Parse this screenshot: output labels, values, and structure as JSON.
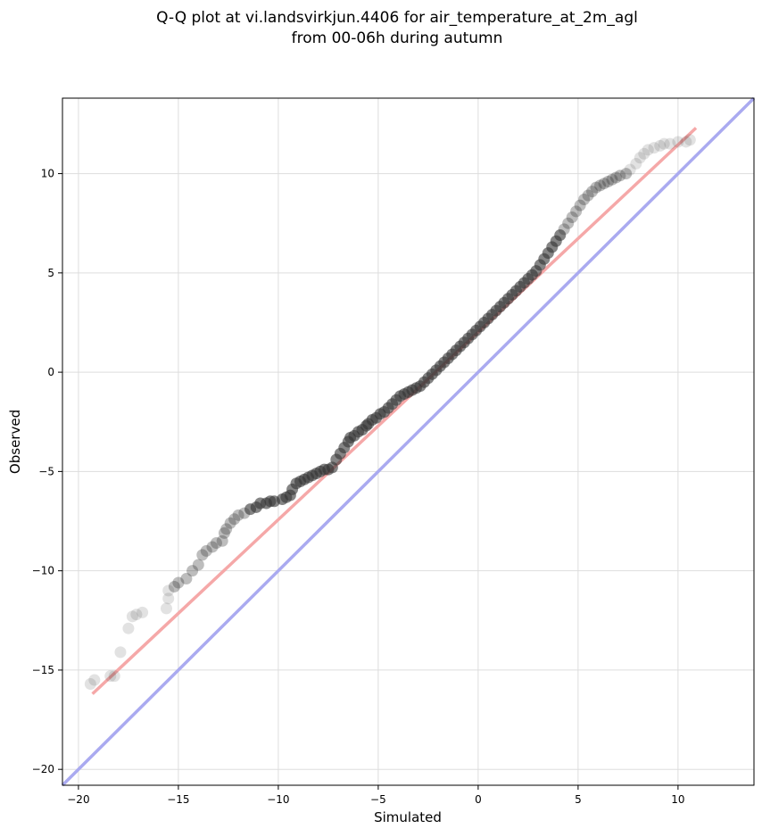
{
  "chart_data": {
    "type": "scatter",
    "title_line1": "Q-Q plot at vi.landsvirkjun.4406 for air_temperature_at_2m_agl",
    "title_line2": "from 00-06h during autumn",
    "xlabel": "Simulated",
    "ylabel": "Observed",
    "xlim": [
      -20.8,
      13.8
    ],
    "ylim": [
      -20.8,
      13.8
    ],
    "xticks": [
      -20,
      -15,
      -10,
      -5,
      0,
      5,
      10
    ],
    "yticks": [
      -20,
      -15,
      -10,
      -5,
      0,
      5,
      10
    ],
    "grid": true,
    "colors": {
      "points": "#333333",
      "identity_line": "#aaaaf0",
      "fit_line": "#f5a8a8"
    },
    "identity_line": {
      "x": [
        -20.8,
        13.8
      ],
      "y": [
        -20.8,
        13.8
      ]
    },
    "fit_line": {
      "x": [
        -19.3,
        10.9
      ],
      "y": [
        -16.2,
        12.3
      ]
    },
    "series": [
      {
        "x": [
          -19.4,
          -19.2,
          -18.4,
          -18.2,
          -17.9,
          -17.5,
          -17.3,
          -17.1,
          -16.8,
          -15.6,
          -15.5,
          -15.5,
          -15.2,
          -15.0,
          -14.6,
          -14.3,
          -14.0,
          -13.8,
          -13.6,
          -13.3,
          -13.1,
          -12.8,
          -12.7,
          -12.6,
          -12.4,
          -12.2,
          -12.0,
          -11.7,
          -11.4,
          -11.1,
          -10.9,
          -10.6,
          -10.4,
          -10.2,
          -9.8,
          -9.6,
          -9.4,
          -9.3,
          -9.1,
          -8.9,
          -8.7,
          -8.5,
          -8.3,
          -8.1,
          -7.9,
          -7.7,
          -7.5,
          -7.3,
          -7.1,
          -6.9,
          -6.7,
          -6.5,
          -6.4,
          -6.2,
          -6.0,
          -5.8,
          -5.6,
          -5.5,
          -5.3,
          -5.1,
          -4.9,
          -4.7,
          -4.5,
          -4.3,
          -4.1,
          -3.9,
          -3.7,
          -3.5,
          -3.3,
          -3.1,
          -2.9,
          -2.7,
          -2.5,
          -2.3,
          -2.1,
          -1.9,
          -1.7,
          -1.5,
          -1.3,
          -1.1,
          -0.9,
          -0.7,
          -0.5,
          -0.3,
          -0.1,
          0.1,
          0.3,
          0.5,
          0.7,
          0.9,
          1.1,
          1.3,
          1.5,
          1.7,
          1.9,
          2.1,
          2.3,
          2.5,
          2.7,
          2.9,
          3.1,
          3.3,
          3.5,
          3.7,
          3.9,
          4.1,
          4.3,
          4.5,
          4.7,
          4.9,
          5.1,
          5.3,
          5.5,
          5.7,
          5.9,
          6.1,
          6.3,
          6.5,
          6.7,
          6.9,
          7.1,
          7.4,
          7.6,
          7.9,
          8.1,
          8.3,
          8.5,
          8.8,
          9.1,
          9.3,
          9.6,
          10.0,
          10.4,
          10.6
        ],
        "y": [
          -15.7,
          -15.5,
          -15.3,
          -15.3,
          -14.1,
          -12.9,
          -12.3,
          -12.2,
          -12.1,
          -11.9,
          -11.4,
          -11.0,
          -10.8,
          -10.6,
          -10.4,
          -10.0,
          -9.7,
          -9.2,
          -9.0,
          -8.8,
          -8.6,
          -8.5,
          -8.1,
          -7.9,
          -7.6,
          -7.4,
          -7.2,
          -7.1,
          -6.9,
          -6.8,
          -6.6,
          -6.6,
          -6.5,
          -6.5,
          -6.4,
          -6.3,
          -6.2,
          -5.9,
          -5.6,
          -5.5,
          -5.4,
          -5.3,
          -5.2,
          -5.1,
          -5.0,
          -4.9,
          -4.9,
          -4.8,
          -4.4,
          -4.1,
          -3.8,
          -3.5,
          -3.3,
          -3.2,
          -3.0,
          -2.9,
          -2.7,
          -2.6,
          -2.4,
          -2.3,
          -2.1,
          -2.0,
          -1.8,
          -1.6,
          -1.4,
          -1.2,
          -1.1,
          -1.0,
          -0.9,
          -0.8,
          -0.7,
          -0.5,
          -0.3,
          -0.1,
          0.1,
          0.3,
          0.5,
          0.7,
          0.9,
          1.1,
          1.3,
          1.5,
          1.7,
          1.9,
          2.1,
          2.3,
          2.5,
          2.7,
          2.9,
          3.1,
          3.3,
          3.5,
          3.7,
          3.9,
          4.1,
          4.3,
          4.5,
          4.7,
          4.9,
          5.1,
          5.4,
          5.7,
          6.0,
          6.3,
          6.6,
          6.9,
          7.2,
          7.5,
          7.8,
          8.1,
          8.4,
          8.7,
          8.9,
          9.1,
          9.3,
          9.4,
          9.5,
          9.6,
          9.7,
          9.8,
          9.9,
          10.0,
          10.2,
          10.5,
          10.8,
          11.0,
          11.2,
          11.3,
          11.4,
          11.5,
          11.5,
          11.6,
          11.6,
          11.7
        ]
      }
    ]
  }
}
